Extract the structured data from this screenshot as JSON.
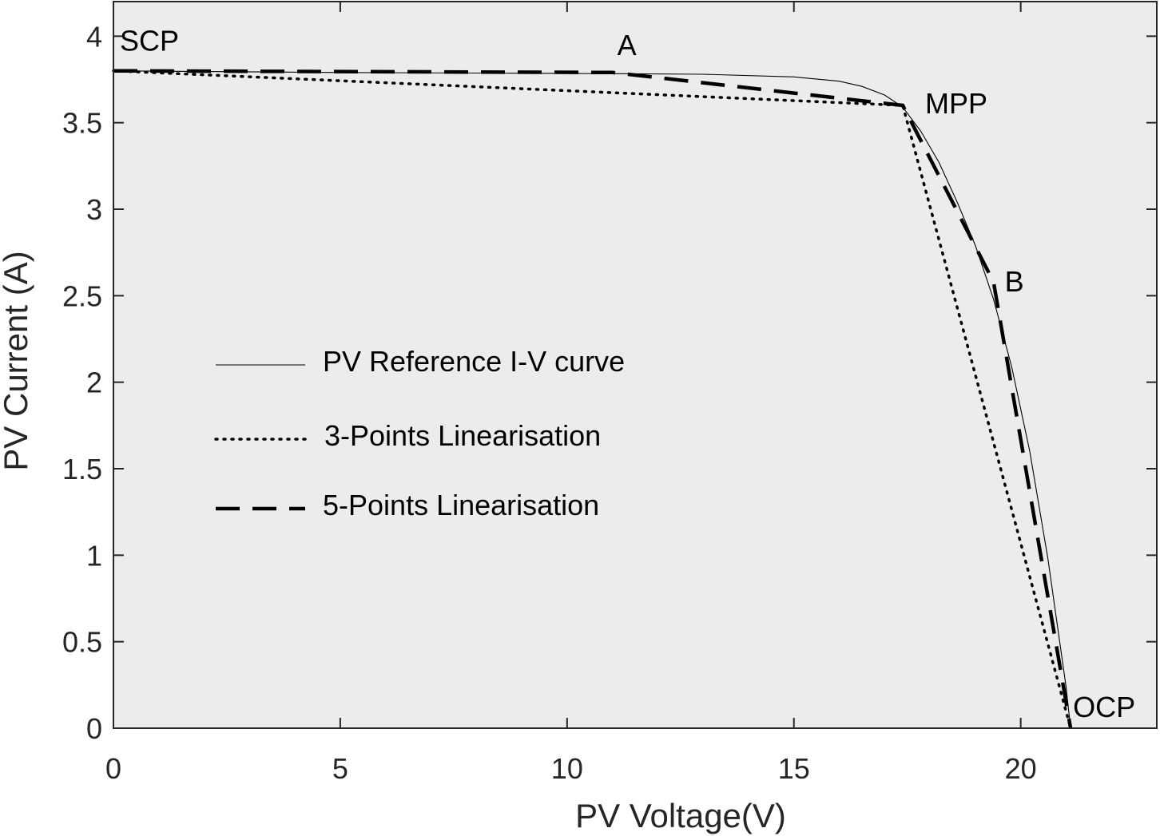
{
  "chart_data": {
    "type": "line",
    "title": "",
    "xlabel": "PV Voltage(V)",
    "ylabel": "PV Current (A)",
    "xlim": [
      0,
      23
    ],
    "ylim": [
      0,
      4.2
    ],
    "xticks": [
      0,
      5,
      10,
      15,
      20
    ],
    "xtick_labels": [
      "0",
      "5",
      "10",
      "15",
      "20"
    ],
    "yticks": [
      0,
      0.5,
      1,
      1.5,
      2,
      2.5,
      3,
      3.5,
      4
    ],
    "ytick_labels": [
      "0",
      "0.5",
      "1",
      "1.5",
      "2",
      "2.5",
      "3",
      "3.5",
      "4"
    ],
    "grid": false,
    "background": "#ececec",
    "legend_position": "middle-left",
    "series": [
      {
        "name": "PV Reference I-V curve",
        "style": "solid-thin",
        "x": [
          0,
          5,
          10,
          13,
          15,
          16,
          16.5,
          17,
          17.4,
          17.8,
          18.2,
          18.6,
          19,
          19.4,
          19.8,
          20.2,
          20.6,
          21.0,
          21.1
        ],
        "y": [
          3.8,
          3.79,
          3.785,
          3.78,
          3.765,
          3.74,
          3.71,
          3.66,
          3.59,
          3.45,
          3.27,
          3.04,
          2.79,
          2.48,
          2.09,
          1.6,
          0.98,
          0.24,
          0
        ]
      },
      {
        "name": "3-Points Linearisation",
        "style": "dotted",
        "x": [
          0,
          17.4,
          21.1
        ],
        "y": [
          3.8,
          3.6,
          0
        ]
      },
      {
        "name": "5-Points Linearisation",
        "style": "dashed",
        "x": [
          0,
          11,
          17.4,
          19.4,
          21.1
        ],
        "y": [
          3.8,
          3.79,
          3.6,
          2.58,
          0
        ]
      }
    ],
    "annotations": [
      {
        "text": "SCP",
        "x": 0,
        "y": 3.8
      },
      {
        "text": "A",
        "x": 11,
        "y": 3.79
      },
      {
        "text": "MPP",
        "x": 17.4,
        "y": 3.6
      },
      {
        "text": "B",
        "x": 19.4,
        "y": 2.58
      },
      {
        "text": "OCP",
        "x": 21.1,
        "y": 0
      }
    ]
  }
}
